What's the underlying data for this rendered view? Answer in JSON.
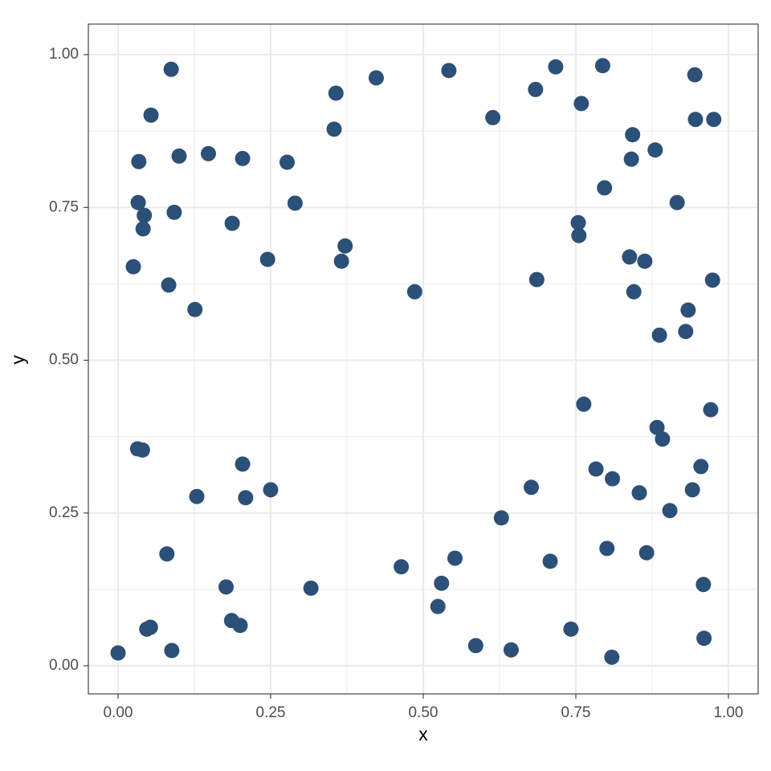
{
  "chart_data": {
    "type": "scatter",
    "xlabel": "x",
    "ylabel": "y",
    "color": "#2c5078",
    "grid": true,
    "xlim": [
      -0.0487,
      1.0487
    ],
    "ylim": [
      -0.046,
      1.05
    ],
    "xticks": [
      {
        "value": 0,
        "label": "0.00"
      },
      {
        "value": 0.25,
        "label": "0.25"
      },
      {
        "value": 0.5,
        "label": "0.50"
      },
      {
        "value": 0.75,
        "label": "0.75"
      },
      {
        "value": 1,
        "label": "1.00"
      }
    ],
    "yticks": [
      {
        "value": 0,
        "label": "0.00"
      },
      {
        "value": 0.25,
        "label": "0.25"
      },
      {
        "value": 0.5,
        "label": "0.50"
      },
      {
        "value": 0.75,
        "label": "0.75"
      },
      {
        "value": 1,
        "label": "1.00"
      }
    ],
    "xminor": [
      0.125,
      0.375,
      0.625,
      0.875
    ],
    "yminor": [
      0.125,
      0.375,
      0.625,
      0.875
    ],
    "x": [
      0.0,
      0.087,
      0.054,
      0.034,
      0.1,
      0.148,
      0.204,
      0.277,
      0.033,
      0.043,
      0.092,
      0.041,
      0.187,
      0.29,
      0.025,
      0.083,
      0.126,
      0.245,
      0.372,
      0.366,
      0.357,
      0.354,
      0.423,
      0.542,
      0.486,
      0.614,
      0.684,
      0.717,
      0.794,
      0.759,
      0.945,
      0.946,
      0.976,
      0.843,
      0.88,
      0.841,
      0.797,
      0.916,
      0.754,
      0.755,
      0.838,
      0.863,
      0.686,
      0.845,
      0.974,
      0.934,
      0.93,
      0.887,
      0.763,
      0.971,
      0.883,
      0.892,
      0.955,
      0.783,
      0.81,
      0.941,
      0.854,
      0.904,
      0.677,
      0.628,
      0.801,
      0.866,
      0.708,
      0.552,
      0.53,
      0.524,
      0.464,
      0.959,
      0.742,
      0.96,
      0.586,
      0.644,
      0.809,
      0.032,
      0.04,
      0.204,
      0.209,
      0.25,
      0.129,
      0.08,
      0.177,
      0.316,
      0.186,
      0.2,
      0.047,
      0.053,
      0.088
    ],
    "values": [
      0.021,
      0.976,
      0.901,
      0.825,
      0.834,
      0.838,
      0.83,
      0.824,
      0.758,
      0.737,
      0.742,
      0.715,
      0.724,
      0.757,
      0.653,
      0.623,
      0.583,
      0.665,
      0.687,
      0.662,
      0.937,
      0.878,
      0.962,
      0.974,
      0.612,
      0.897,
      0.943,
      0.98,
      0.982,
      0.92,
      0.967,
      0.894,
      0.894,
      0.869,
      0.844,
      0.829,
      0.782,
      0.758,
      0.725,
      0.704,
      0.669,
      0.662,
      0.632,
      0.612,
      0.631,
      0.582,
      0.547,
      0.541,
      0.428,
      0.419,
      0.39,
      0.371,
      0.326,
      0.322,
      0.306,
      0.288,
      0.283,
      0.254,
      0.292,
      0.242,
      0.192,
      0.185,
      0.171,
      0.176,
      0.135,
      0.097,
      0.162,
      0.133,
      0.06,
      0.045,
      0.033,
      0.026,
      0.014,
      0.355,
      0.353,
      0.33,
      0.275,
      0.288,
      0.277,
      0.183,
      0.129,
      0.127,
      0.074,
      0.066,
      0.06,
      0.063,
      0.025
    ]
  }
}
